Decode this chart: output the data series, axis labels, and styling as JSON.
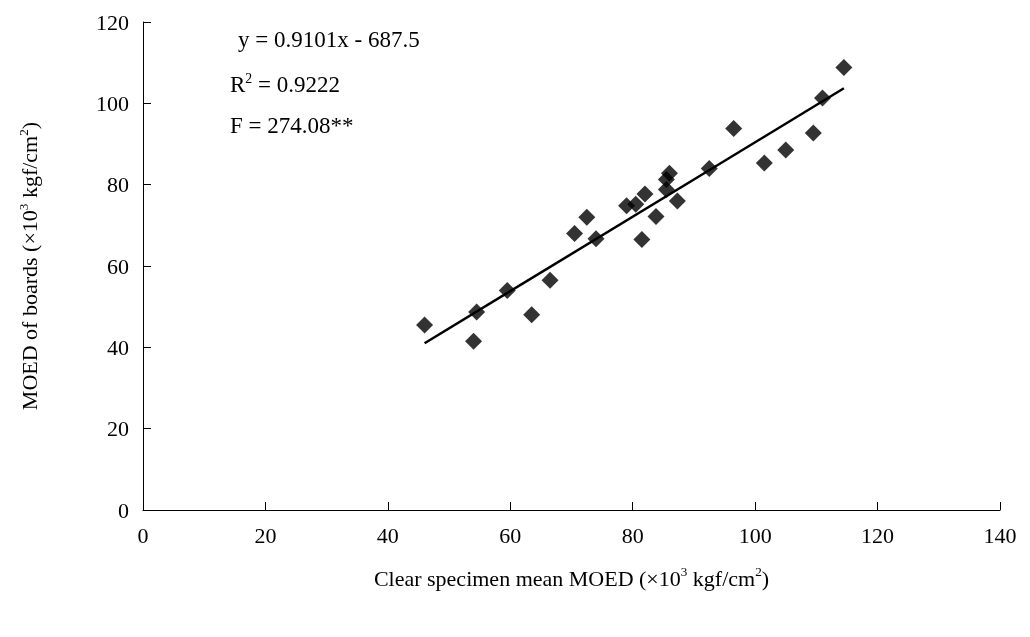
{
  "chart_data": {
    "type": "scatter",
    "xlabel": "Clear specimen mean MOED (×10$^{3}$ kgf/cm$^{2}$)",
    "ylabel": "MOED of boards (×10$^{3}$ kgf/cm$^{2}$)",
    "xlim": [
      0,
      140
    ],
    "xticks": [
      0,
      20,
      40,
      60,
      80,
      100,
      120,
      140
    ],
    "ylim": [
      0,
      120
    ],
    "yticks": [
      0,
      20,
      40,
      60,
      80,
      100,
      120
    ],
    "grid": false,
    "marker": "diamond",
    "annotations": [
      "y = 0.9101x - 687.5",
      "R$^{2}$ = 0.9222",
      "F = 274.08**"
    ],
    "series": [
      {
        "color": "#000000",
        "x": [
          46,
          54.5,
          54,
          59.5,
          63.5,
          66.5,
          70.5,
          72.5,
          74,
          79,
          80.5,
          81.5,
          82,
          83.8,
          85.5,
          85.5,
          86,
          87.3,
          92.5,
          96.5,
          101.5,
          105,
          109.5,
          111,
          114.5
        ],
        "values": [
          45.5,
          48.7,
          41.5,
          54,
          48,
          56.5,
          68,
          72,
          66.7,
          74.8,
          75.2,
          66.5,
          77.7,
          72.2,
          78.8,
          81.3,
          82.8,
          76,
          84,
          93.8,
          85.3,
          88.5,
          92.7,
          101.3,
          108.8
        ]
      },
      {
        "type": "line",
        "color": "#000000",
        "marker": "none",
        "x": [
          46,
          114.5
        ],
        "values": [
          41,
          103.7
        ]
      }
    ]
  }
}
